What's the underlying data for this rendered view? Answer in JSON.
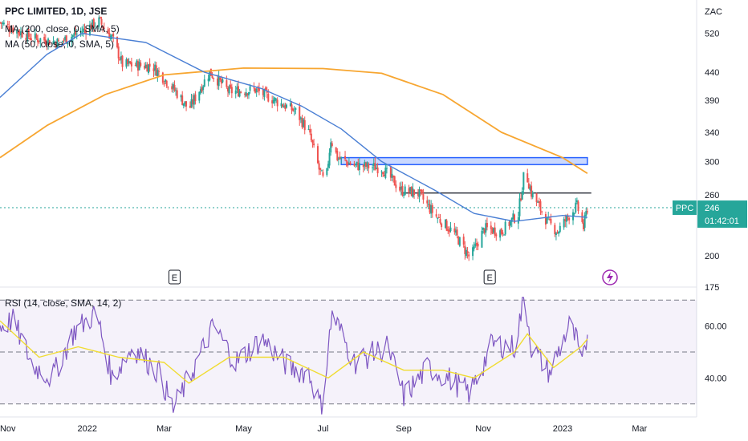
{
  "header": {
    "title": "PPC LIMITED, 1D, JSE",
    "ma200_label": "MA (200, close, 0, SMA, 5)",
    "ma50_label": "MA (50, close, 0, SMA, 5)",
    "rsi_label": "RSI (14, close, SMA, 14, 2)"
  },
  "price_axis": {
    "currency": "ZAC",
    "ticks": [
      "520",
      "440",
      "390",
      "340",
      "300",
      "260",
      "200",
      "175"
    ]
  },
  "rsi_axis": {
    "ticks": [
      "60.00",
      "40.00"
    ]
  },
  "time_axis": {
    "ticks": [
      "Nov",
      "2022",
      "Mar",
      "May",
      "Jul",
      "Sep",
      "Nov",
      "2023",
      "Mar"
    ]
  },
  "last_price": {
    "symbol": "PPC",
    "value": "246",
    "countdown": "01:42:01"
  },
  "event_markers": [
    "E",
    "E"
  ],
  "colors": {
    "up": "#26a69a",
    "down": "#ef5350",
    "ma200": "#f7a631",
    "ma50": "#4a7fd4",
    "rsi": "#7e57c2",
    "rsi_ma": "#f0dc31",
    "zone": "#2962ff",
    "price_label": "#26a69a"
  },
  "chart_data": [
    {
      "type": "candlestick",
      "title": "PPC LIMITED, 1D, JSE",
      "y_unit": "ZAC",
      "y_scale": "log",
      "ylim": [
        175,
        600
      ],
      "x_ticks": [
        "Nov",
        "2022",
        "Mar",
        "May",
        "Jul",
        "Sep",
        "Nov",
        "2023",
        "Mar"
      ],
      "close_path": [
        {
          "t": "2021-10-26",
          "close": 545
        },
        {
          "t": "2021-11-01",
          "close": 535
        },
        {
          "t": "2021-11-20",
          "close": 510
        },
        {
          "t": "2021-12-10",
          "close": 500
        },
        {
          "t": "2021-12-28",
          "close": 525
        },
        {
          "t": "2022-01-10",
          "close": 548
        },
        {
          "t": "2022-01-20",
          "close": 510
        },
        {
          "t": "2022-01-28",
          "close": 455
        },
        {
          "t": "2022-02-20",
          "close": 452
        },
        {
          "t": "2022-03-10",
          "close": 405
        },
        {
          "t": "2022-03-20",
          "close": 375
        },
        {
          "t": "2022-04-05",
          "close": 440
        },
        {
          "t": "2022-04-20",
          "close": 405
        },
        {
          "t": "2022-05-10",
          "close": 408
        },
        {
          "t": "2022-05-25",
          "close": 390
        },
        {
          "t": "2022-06-10",
          "close": 372
        },
        {
          "t": "2022-06-20",
          "close": 340
        },
        {
          "t": "2022-06-28",
          "close": 290
        },
        {
          "t": "2022-07-03",
          "close": 270
        },
        {
          "t": "2022-07-07",
          "close": 330
        },
        {
          "t": "2022-07-12",
          "close": 305
        },
        {
          "t": "2022-07-25",
          "close": 295
        },
        {
          "t": "2022-08-15",
          "close": 292
        },
        {
          "t": "2022-08-30",
          "close": 265
        },
        {
          "t": "2022-09-12",
          "close": 262
        },
        {
          "t": "2022-09-25",
          "close": 238
        },
        {
          "t": "2022-10-10",
          "close": 220
        },
        {
          "t": "2022-10-22",
          "close": 198
        },
        {
          "t": "2022-11-02",
          "close": 225
        },
        {
          "t": "2022-11-15",
          "close": 222
        },
        {
          "t": "2022-11-28",
          "close": 240
        },
        {
          "t": "2022-12-03",
          "close": 290
        },
        {
          "t": "2022-12-08",
          "close": 262
        },
        {
          "t": "2022-12-20",
          "close": 232
        },
        {
          "t": "2022-12-28",
          "close": 222
        },
        {
          "t": "2023-01-06",
          "close": 238
        },
        {
          "t": "2023-01-12",
          "close": 248
        },
        {
          "t": "2023-01-17",
          "close": 226
        },
        {
          "t": "2023-01-20",
          "close": 246
        }
      ],
      "last_close": 246,
      "ma200_path": [
        {
          "t": "2021-10-26",
          "value": 305
        },
        {
          "t": "2021-12-01",
          "value": 350
        },
        {
          "t": "2022-01-15",
          "value": 400
        },
        {
          "t": "2022-03-01",
          "value": 435
        },
        {
          "t": "2022-05-01",
          "value": 448
        },
        {
          "t": "2022-07-01",
          "value": 447
        },
        {
          "t": "2022-08-15",
          "value": 438
        },
        {
          "t": "2022-10-01",
          "value": 400
        },
        {
          "t": "2022-11-15",
          "value": 340
        },
        {
          "t": "2023-01-01",
          "value": 305
        },
        {
          "t": "2023-01-20",
          "value": 285
        }
      ],
      "ma50_path": [
        {
          "t": "2021-10-26",
          "value": 395
        },
        {
          "t": "2021-12-01",
          "value": 475
        },
        {
          "t": "2021-12-28",
          "value": 520
        },
        {
          "t": "2022-02-15",
          "value": 500
        },
        {
          "t": "2022-04-01",
          "value": 440
        },
        {
          "t": "2022-05-15",
          "value": 410
        },
        {
          "t": "2022-06-15",
          "value": 380
        },
        {
          "t": "2022-07-15",
          "value": 345
        },
        {
          "t": "2022-08-15",
          "value": 300
        },
        {
          "t": "2022-09-25",
          "value": 265
        },
        {
          "t": "2022-10-25",
          "value": 240
        },
        {
          "t": "2022-11-25",
          "value": 232
        },
        {
          "t": "2023-01-01",
          "value": 238
        },
        {
          "t": "2023-01-20",
          "value": 236
        }
      ],
      "drawings": {
        "resistance_zone": {
          "y_top": 305,
          "y_bottom": 296,
          "t_start": "2022-07-15",
          "t_end": "2023-01-20"
        },
        "horizontal_line": {
          "y": 262,
          "t_start": "2022-08-30",
          "t_end": "2023-01-23"
        }
      },
      "events": [
        {
          "t": "2022-03-09",
          "label": "E"
        },
        {
          "t": "2022-11-06",
          "label": "E"
        }
      ]
    },
    {
      "type": "line",
      "title": "RSI (14, close, SMA, 14, 2)",
      "ylim": [
        25,
        75
      ],
      "bands": [
        30,
        50,
        70
      ],
      "rsi_path": [
        {
          "t": "2021-10-26",
          "value": 60
        },
        {
          "t": "2021-11-05",
          "value": 62
        },
        {
          "t": "2021-11-20",
          "value": 45
        },
        {
          "t": "2021-12-05",
          "value": 40
        },
        {
          "t": "2021-12-22",
          "value": 58
        },
        {
          "t": "2022-01-08",
          "value": 65
        },
        {
          "t": "2022-01-20",
          "value": 40
        },
        {
          "t": "2022-02-05",
          "value": 52
        },
        {
          "t": "2022-02-25",
          "value": 42
        },
        {
          "t": "2022-03-08",
          "value": 28
        },
        {
          "t": "2022-03-25",
          "value": 45
        },
        {
          "t": "2022-04-08",
          "value": 60
        },
        {
          "t": "2022-04-25",
          "value": 46
        },
        {
          "t": "2022-05-15",
          "value": 55
        },
        {
          "t": "2022-06-05",
          "value": 44
        },
        {
          "t": "2022-06-20",
          "value": 42
        },
        {
          "t": "2022-06-30",
          "value": 28
        },
        {
          "t": "2022-07-08",
          "value": 65
        },
        {
          "t": "2022-07-25",
          "value": 46
        },
        {
          "t": "2022-08-20",
          "value": 52
        },
        {
          "t": "2022-09-01",
          "value": 33
        },
        {
          "t": "2022-09-20",
          "value": 44
        },
        {
          "t": "2022-10-05",
          "value": 40
        },
        {
          "t": "2022-10-22",
          "value": 34
        },
        {
          "t": "2022-11-08",
          "value": 53
        },
        {
          "t": "2022-11-25",
          "value": 52
        },
        {
          "t": "2022-12-03",
          "value": 72
        },
        {
          "t": "2022-12-08",
          "value": 52
        },
        {
          "t": "2022-12-22",
          "value": 42
        },
        {
          "t": "2023-01-06",
          "value": 60
        },
        {
          "t": "2023-01-12",
          "value": 54
        },
        {
          "t": "2023-01-16",
          "value": 44
        },
        {
          "t": "2023-01-20",
          "value": 57
        }
      ],
      "rsi_ma_path": [
        {
          "t": "2021-10-26",
          "value": 62
        },
        {
          "t": "2021-11-25",
          "value": 48
        },
        {
          "t": "2021-12-25",
          "value": 52
        },
        {
          "t": "2022-01-25",
          "value": 48
        },
        {
          "t": "2022-03-01",
          "value": 46
        },
        {
          "t": "2022-03-20",
          "value": 38
        },
        {
          "t": "2022-04-20",
          "value": 48
        },
        {
          "t": "2022-06-01",
          "value": 48
        },
        {
          "t": "2022-07-05",
          "value": 40
        },
        {
          "t": "2022-08-01",
          "value": 50
        },
        {
          "t": "2022-09-01",
          "value": 43
        },
        {
          "t": "2022-10-01",
          "value": 43
        },
        {
          "t": "2022-10-25",
          "value": 40
        },
        {
          "t": "2022-11-25",
          "value": 50
        },
        {
          "t": "2022-12-05",
          "value": 57
        },
        {
          "t": "2022-12-25",
          "value": 44
        },
        {
          "t": "2023-01-15",
          "value": 52
        },
        {
          "t": "2023-01-20",
          "value": 55
        }
      ]
    }
  ]
}
